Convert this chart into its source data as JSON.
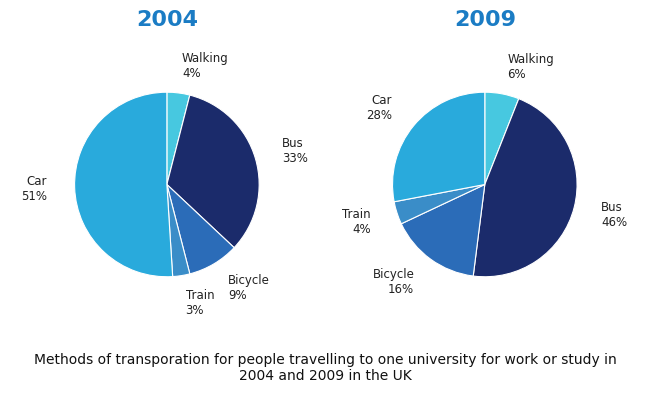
{
  "title_2004": "2004",
  "title_2009": "2009",
  "title_color": "#1B7CC4",
  "title_fontsize": 16,
  "caption": "Methods of transporation for people travelling to one university for work or study in\n2004 and 2009 in the UK",
  "caption_fontsize": 10,
  "pie_2004": {
    "labels": [
      "Walking",
      "Bus",
      "Bicycle",
      "Train",
      "Car"
    ],
    "values": [
      4,
      33,
      9,
      3,
      51
    ],
    "colors": [
      "#47C8E0",
      "#1B2B6B",
      "#2B6CB8",
      "#3A8DC8",
      "#29AADC"
    ]
  },
  "pie_2009": {
    "labels": [
      "Walking",
      "Bus",
      "Bicycle",
      "Train",
      "Car"
    ],
    "values": [
      6,
      46,
      16,
      4,
      28
    ],
    "colors": [
      "#47C8E0",
      "#1B2B6B",
      "#2B6CB8",
      "#3A8DC8",
      "#29AADC"
    ]
  },
  "label_fontsize": 8.5,
  "label_color": "#222222",
  "bg_color": "#FFFFFF",
  "startangle": 90
}
